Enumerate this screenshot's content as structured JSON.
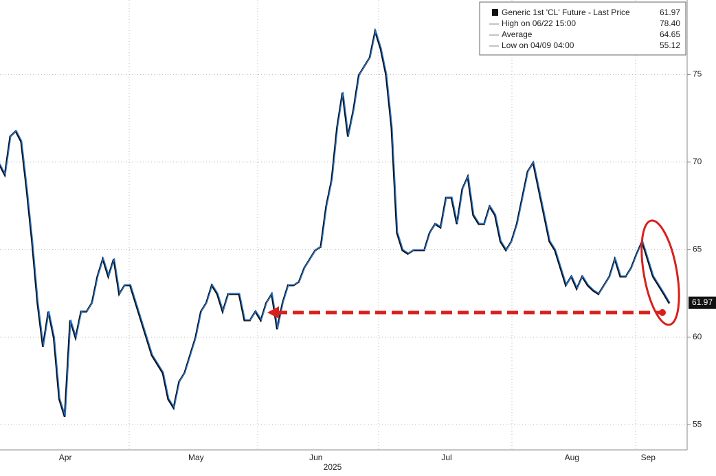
{
  "chart_data": {
    "type": "line",
    "categories": [
      null,
      null,
      null,
      null,
      null,
      null,
      null,
      null,
      null,
      null,
      null,
      null,
      "Apr",
      null,
      null,
      null,
      null,
      null,
      null,
      null,
      null,
      null,
      null,
      null,
      null,
      null,
      null,
      null,
      null,
      null,
      null,
      null,
      null,
      null,
      null,
      null,
      "May",
      null,
      null,
      null,
      null,
      null,
      null,
      null,
      null,
      null,
      null,
      null,
      null,
      null,
      null,
      null,
      null,
      null,
      null,
      null,
      null,
      null,
      "Jun",
      null,
      null,
      null,
      null,
      null,
      null,
      null,
      null,
      null,
      null,
      null,
      null,
      null,
      null,
      null,
      null,
      null,
      null,
      null,
      null,
      null,
      null,
      null,
      "Jul",
      null,
      null,
      null,
      null,
      null,
      null,
      null,
      null,
      null,
      null,
      null,
      null,
      null,
      null,
      null,
      null,
      null,
      null,
      null,
      null,
      null,
      null,
      "Aug",
      null,
      null,
      null,
      null,
      null,
      null,
      null,
      null,
      null,
      null,
      null,
      null,
      null,
      "Sep",
      null,
      null,
      null,
      null
    ],
    "series": [
      {
        "name": "Generic 1st 'CL' Future - Last Price",
        "color": "#2a78d4",
        "values": [
          69.9,
          69.3,
          71.5,
          71.8,
          71.2,
          68.5,
          65.5,
          62,
          59.5,
          61.5,
          60,
          56.5,
          55.5,
          61,
          60,
          61.5,
          61.5,
          62,
          63.5,
          64.5,
          63.5,
          64.5,
          62.5,
          63,
          63,
          62,
          61,
          60,
          59,
          58.5,
          58,
          56.5,
          56,
          57.5,
          58,
          59,
          60,
          61.5,
          62,
          63,
          62.5,
          61.5,
          62.5,
          62.5,
          62.5,
          61,
          61,
          61.5,
          61,
          62,
          62.5,
          60.5,
          62,
          63,
          63,
          63.2,
          64,
          64.5,
          65,
          65.2,
          67.5,
          69,
          72,
          74,
          71.5,
          73,
          75,
          75.5,
          76,
          77.5,
          76.5,
          75,
          72,
          66,
          65,
          64.8,
          65,
          65,
          65,
          66,
          66.5,
          66.3,
          68,
          68,
          66.5,
          68.5,
          69.2,
          67,
          66.5,
          66.5,
          67.5,
          67,
          65.5,
          65,
          65.5,
          66.5,
          68,
          69.5,
          70,
          68.5,
          67,
          65.5,
          65,
          64,
          63,
          63.5,
          62.8,
          63.5,
          63,
          62.7,
          62.5,
          63,
          63.5,
          64.5,
          63.5,
          63.5,
          64,
          64.8,
          65.5,
          64.5,
          63.5,
          63,
          62.5,
          61.97
        ]
      }
    ],
    "stats": [
      {
        "name": "High on 06/22 15:00",
        "value": 78.4,
        "value_label": "78.40"
      },
      {
        "name": "Average",
        "value": 64.65
      },
      {
        "name": "Low on 04/09 04:00",
        "value": 55.12
      }
    ],
    "xlabel": "2025",
    "ylim": [
      53.57,
      79.25
    ],
    "yticks": [
      55,
      60,
      65,
      70,
      75
    ],
    "grid": true
  }
}
